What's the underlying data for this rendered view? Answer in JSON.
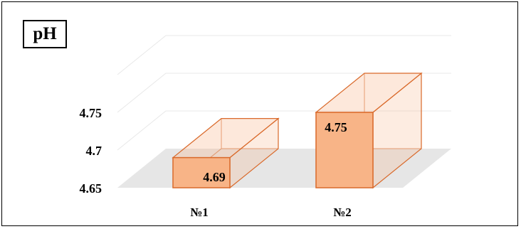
{
  "chart_data": {
    "type": "bar",
    "title": "pH",
    "categories": [
      "№1",
      "№2"
    ],
    "values": [
      4.69,
      4.75
    ],
    "data_labels": [
      "4.69",
      "4.75"
    ],
    "y_ticks": [
      "4.65",
      "4.7",
      "4.75"
    ],
    "ylim": [
      4.65,
      4.8
    ],
    "xlabel": "",
    "ylabel": "",
    "grid": true,
    "style": "3d-box",
    "colors": {
      "bar_fill": "#f8b487",
      "bar_edge": "#d9692a",
      "floor": "#e6e6e6",
      "grid": "#e8e8e8"
    }
  }
}
